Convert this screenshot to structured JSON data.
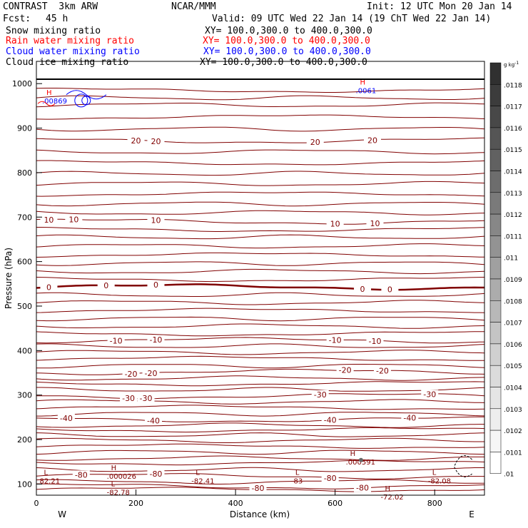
{
  "header": {
    "model": "CONTRAST  3km ARW",
    "center": "NCAR/MMM",
    "init": "Init: 12 UTC Mon 20 Jan 14",
    "fcst_label": "Fcst:",
    "fcst_value": "45 h",
    "valid": "Valid: 09 UTC Wed 22 Jan 14 (19 ChT Wed 22 Jan 14)"
  },
  "fields": [
    {
      "name": "Snow mixing ratio",
      "xy": "XY= 100.0,300.0 to 400.0,300.0",
      "color": "#000000"
    },
    {
      "name": "Rain water mixing ratio",
      "xy": "XY= 100.0,300.0 to 400.0,300.0",
      "color": "#ff0000"
    },
    {
      "name": "Cloud water mixing ratio",
      "xy": "XY= 100.0,300.0 to 400.0,300.0",
      "color": "#0000ff"
    },
    {
      "name": "Cloud ice mixing ratio",
      "xy": "XY= 100.0,300.0 to 400.0,300.0",
      "color": "#000000"
    }
  ],
  "chart_data": {
    "type": "contour",
    "xlabel": "Distance (km)",
    "ylabel": "Pressure (hPa)",
    "xlim": [
      0,
      900
    ],
    "ylim": [
      1050,
      75
    ],
    "x_ticks": [
      0,
      200,
      400,
      600,
      800
    ],
    "y_ticks": [
      100,
      200,
      300,
      400,
      500,
      600,
      700,
      800,
      900,
      1000
    ],
    "x_end_labels": {
      "left": "W",
      "right": "E"
    },
    "temperature_contours": [
      {
        "level": -80,
        "p": 118,
        "labels": [
          {
            "x": 90,
            "text": "-80"
          },
          {
            "x": 240,
            "text": "-80"
          },
          {
            "x": 590,
            "text": "-80"
          }
        ]
      },
      {
        "level": -80,
        "p": 95,
        "labels": [
          {
            "x": 445,
            "text": "-80"
          },
          {
            "x": 655,
            "text": "-80"
          }
        ]
      },
      {
        "level": -40,
        "p": 245,
        "labels": [
          {
            "x": 60,
            "text": "-40"
          },
          {
            "x": 235,
            "text": "-40"
          },
          {
            "x": 590,
            "text": "-40"
          },
          {
            "x": 750,
            "text": "-40"
          }
        ]
      },
      {
        "level": -30,
        "p": 298,
        "labels": [
          {
            "x": 185,
            "text": "-30"
          },
          {
            "x": 220,
            "text": "-30"
          },
          {
            "x": 570,
            "text": "-30"
          },
          {
            "x": 790,
            "text": "-30"
          }
        ]
      },
      {
        "level": -20,
        "p": 352,
        "labels": [
          {
            "x": 190,
            "text": "-20"
          },
          {
            "x": 230,
            "text": "-20"
          },
          {
            "x": 620,
            "text": "-20"
          },
          {
            "x": 695,
            "text": "-20"
          }
        ]
      },
      {
        "level": -10,
        "p": 423,
        "labels": [
          {
            "x": 160,
            "text": "-10"
          },
          {
            "x": 240,
            "text": "-10"
          },
          {
            "x": 600,
            "text": "-10"
          },
          {
            "x": 680,
            "text": "-10"
          }
        ]
      },
      {
        "level": 0,
        "p": 543,
        "labels": [
          {
            "x": 25,
            "text": "0"
          },
          {
            "x": 140,
            "text": "0"
          },
          {
            "x": 240,
            "text": "0"
          },
          {
            "x": 655,
            "text": "0"
          },
          {
            "x": 710,
            "text": "0"
          }
        ]
      },
      {
        "level": 10,
        "p": 690,
        "labels": [
          {
            "x": 25,
            "text": "10"
          },
          {
            "x": 75,
            "text": "10"
          },
          {
            "x": 240,
            "text": "10"
          },
          {
            "x": 600,
            "text": "10"
          },
          {
            "x": 680,
            "text": "10"
          }
        ]
      },
      {
        "level": 20,
        "p": 872,
        "labels": [
          {
            "x": 200,
            "text": "20"
          },
          {
            "x": 240,
            "text": "20"
          },
          {
            "x": 560,
            "text": "20"
          },
          {
            "x": 675,
            "text": "20"
          }
        ]
      }
    ],
    "extrema": [
      {
        "type": "L",
        "x": 150,
        "p": 82,
        "value": "-82.78"
      },
      {
        "type": "L",
        "x": 15,
        "p": 108,
        "value": "82.21"
      },
      {
        "type": "H",
        "x": 150,
        "p": 118,
        "value": ".000026"
      },
      {
        "type": "L",
        "x": 320,
        "p": 108,
        "value": "-82.41"
      },
      {
        "type": "L",
        "x": 520,
        "p": 108,
        "value": "-83"
      },
      {
        "type": "H",
        "x": 700,
        "p": 72,
        "value": "-72.02"
      },
      {
        "type": "L",
        "x": 795,
        "p": 108,
        "value": "-82.08"
      },
      {
        "type": "H",
        "x": 630,
        "p": 150,
        "value": ".000591"
      },
      {
        "type": "H",
        "x": 20,
        "p": 962,
        "value": ".00869"
      },
      {
        "type": "H",
        "x": 650,
        "p": 985,
        "value": ".0061"
      }
    ],
    "colorbar": {
      "unit": "g kg",
      "unit_exponent": "-1",
      "labels": [
        ".0118",
        ".0117",
        ".0116",
        ".0115",
        ".0114",
        ".0113",
        ".0112",
        ".0111",
        ".011",
        ".0109",
        ".0108",
        ".0107",
        ".0106",
        ".0105",
        ".0104",
        ".0103",
        ".0102",
        ".0101",
        ".01"
      ],
      "colors": [
        "#303030",
        "#3c3c3c",
        "#484848",
        "#555555",
        "#616161",
        "#6d6d6d",
        "#7a7a7a",
        "#878787",
        "#939393",
        "#a0a0a0",
        "#acacac",
        "#b8b8b8",
        "#c4c4c4",
        "#d0d0d0",
        "#dbdbdb",
        "#e5e5e5",
        "#eeeeee",
        "#f6f6f6",
        "#ffffff"
      ]
    }
  }
}
